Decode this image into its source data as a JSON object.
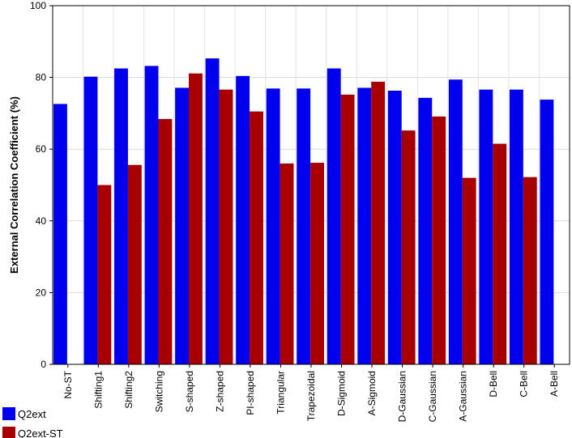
{
  "chart_data": {
    "type": "bar",
    "title": "",
    "xlabel": "",
    "ylabel": "External Correlation Coefficient (%)",
    "ylim": [
      0,
      100
    ],
    "yticks": [
      0,
      20,
      40,
      60,
      80,
      100
    ],
    "grid": true,
    "legend_position": "bottom-left",
    "categories": [
      "No-ST",
      "Shifting1",
      "Shifting2",
      "Switching",
      "S-shaped",
      "Z-shaped",
      "PI-shaped",
      "Triangular",
      "Trapezoidal",
      "D-Sigmoid",
      "A-Sigmoid",
      "D-Gaussian",
      "C-Gaussian",
      "A-Gaussian",
      "D-Bell",
      "C-Bell",
      "A-Bell"
    ],
    "series": [
      {
        "name": "Q2ext",
        "color": "#0000ee",
        "values": [
          72.6,
          80.2,
          82.5,
          83.2,
          77.1,
          85.3,
          80.4,
          76.9,
          76.9,
          82.5,
          77.1,
          76.3,
          74.3,
          79.4,
          76.6,
          76.6,
          73.8
        ]
      },
      {
        "name": "Q2ext-ST",
        "color": "#a80000",
        "values": [
          null,
          50.0,
          55.6,
          68.4,
          81.1,
          76.6,
          70.5,
          56.0,
          56.2,
          75.2,
          78.8,
          65.2,
          69.1,
          52.0,
          61.5,
          52.2,
          null
        ]
      }
    ]
  }
}
